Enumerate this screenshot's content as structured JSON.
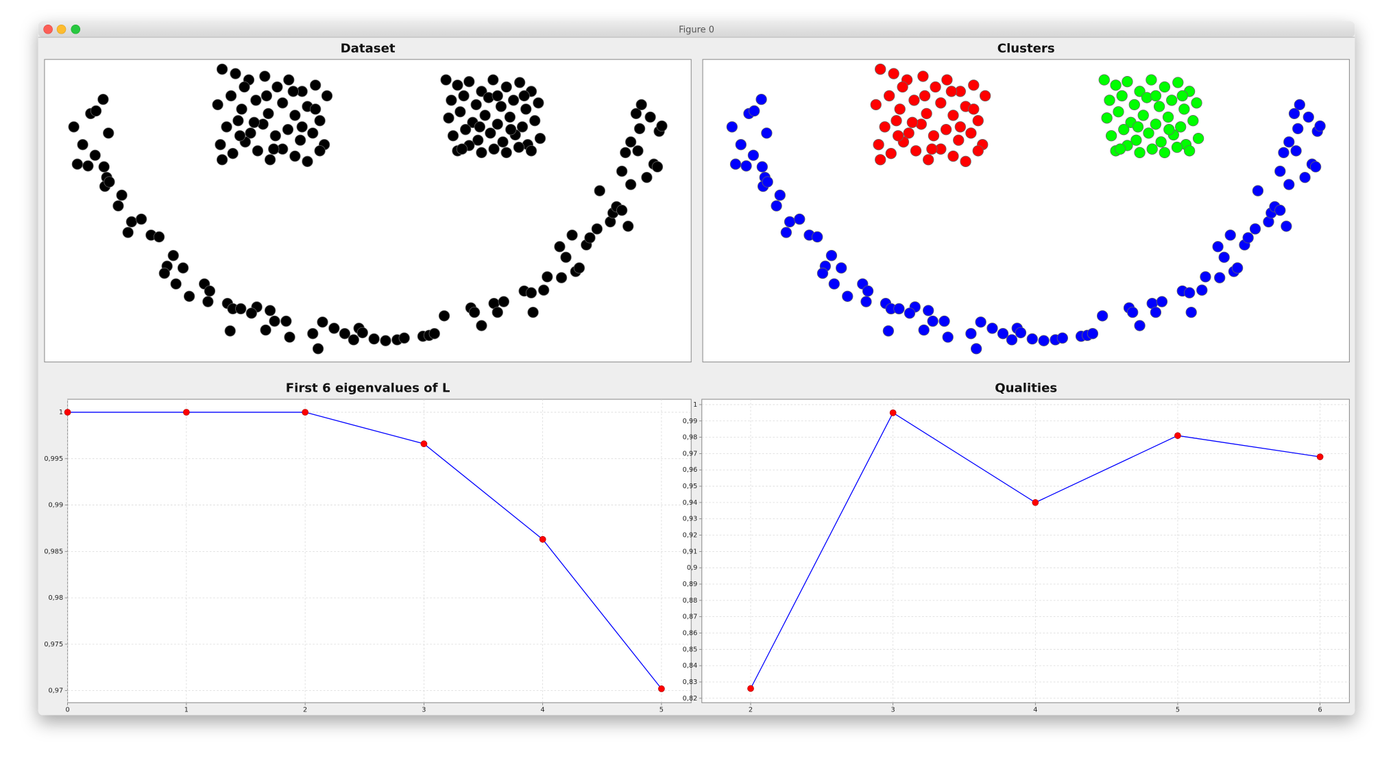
{
  "window_title": "Figure 0",
  "chart_data": [
    {
      "type": "scatter",
      "title": "Dataset",
      "xlim": [
        0,
        728
      ],
      "ylim": [
        0,
        341
      ],
      "series": [
        {
          "color": "#000000",
          "x": [
            33,
            43,
            37,
            49,
            57,
            52,
            58,
            66,
            67,
            72,
            70,
            68,
            73,
            87,
            83,
            98,
            94,
            109,
            120,
            129,
            145,
            138,
            135,
            156,
            148,
            163,
            180,
            186,
            184,
            206,
            212,
            221,
            239,
            233,
            254,
            259,
            272,
            249,
            209,
            276,
            302,
            308,
            313,
            326,
            338,
            348,
            354,
            358,
            371,
            384,
            397,
            405,
            426,
            433,
            439,
            450,
            480,
            484,
            492,
            506,
            510,
            517,
            540,
            548,
            550,
            562,
            566,
            582,
            587,
            598,
            602,
            580,
            594,
            610,
            614,
            622,
            637,
            640,
            644,
            650,
            657,
            625,
            650,
            660,
            654,
            660,
            670,
            666,
            672,
            678,
            686,
            690,
            692,
            695,
            682,
            668
          ],
          "values": [
            265,
            245,
            223,
            221,
            233,
            280,
            283,
            296,
            220,
            258,
            208,
            198,
            203,
            188,
            176,
            158,
            146,
            161,
            143,
            141,
            120,
            108,
            100,
            106,
            88,
            74,
            88,
            80,
            68,
            66,
            60,
            60,
            62,
            55,
            58,
            46,
            46,
            36,
            35,
            28,
            32,
            15,
            45,
            38,
            32,
            25,
            38,
            33,
            26,
            24,
            25,
            27,
            29,
            30,
            32,
            52,
            61,
            56,
            41,
            66,
            56,
            68,
            80,
            78,
            56,
            81,
            96,
            95,
            118,
            102,
            106,
            130,
            143,
            132,
            140,
            150,
            158,
            168,
            175,
            171,
            153,
            193,
            215,
            200,
            236,
            248,
            263,
            280,
            290,
            208,
            223,
            220,
            260,
            266,
            276,
            238
          ]
        },
        {
          "color": "#000000",
          "x": [
            200,
            215,
            230,
            248,
            262,
            275,
            290,
            305,
            318,
            195,
            210,
            222,
            238,
            252,
            268,
            282,
            296,
            310,
            205,
            218,
            232,
            246,
            260,
            274,
            288,
            302,
            315,
            198,
            212,
            226,
            240,
            254,
            268,
            282,
            296,
            310,
            200,
            236,
            250,
            280,
            225,
            290,
            258,
            220,
            305
          ],
          "values": [
            330,
            325,
            318,
            322,
            310,
            318,
            305,
            312,
            300,
            290,
            300,
            285,
            295,
            280,
            292,
            278,
            288,
            272,
            265,
            272,
            258,
            268,
            255,
            262,
            250,
            258,
            245,
            245,
            235,
            248,
            238,
            228,
            240,
            232,
            226,
            238,
            228,
            270,
            300,
            305,
            310,
            265,
            240,
            255,
            285
          ]
        },
        {
          "color": "#000000",
          "x": [
            452,
            465,
            478,
            492,
            505,
            520,
            535,
            548,
            458,
            472,
            486,
            500,
            514,
            528,
            542,
            556,
            455,
            468,
            482,
            496,
            510,
            524,
            538,
            552,
            460,
            474,
            488,
            502,
            516,
            530,
            544,
            558,
            465,
            478,
            492,
            506,
            520,
            534,
            548,
            510,
            490,
            540,
            470,
            525
          ],
          "values": [
            318,
            312,
            316,
            305,
            318,
            310,
            315,
            305,
            295,
            300,
            290,
            298,
            288,
            295,
            285,
            292,
            275,
            282,
            270,
            278,
            268,
            276,
            265,
            272,
            255,
            262,
            250,
            258,
            248,
            256,
            245,
            252,
            238,
            244,
            236,
            240,
            236,
            242,
            238,
            300,
            265,
            300,
            240,
            262
          ]
        }
      ]
    },
    {
      "type": "scatter",
      "title": "Clusters",
      "xlim": [
        0,
        728
      ],
      "ylim": [
        0,
        341
      ],
      "series": [
        {
          "color": "#0000ff",
          "x": [
            33,
            43,
            37,
            49,
            57,
            52,
            58,
            66,
            67,
            72,
            70,
            68,
            73,
            87,
            83,
            98,
            94,
            109,
            120,
            129,
            145,
            138,
            135,
            156,
            148,
            163,
            180,
            186,
            184,
            206,
            212,
            221,
            239,
            233,
            254,
            259,
            272,
            249,
            209,
            276,
            302,
            308,
            313,
            326,
            338,
            348,
            354,
            358,
            371,
            384,
            397,
            405,
            426,
            433,
            439,
            450,
            480,
            484,
            492,
            506,
            510,
            517,
            540,
            548,
            550,
            562,
            566,
            582,
            587,
            598,
            602,
            580,
            594,
            610,
            614,
            622,
            637,
            640,
            644,
            650,
            657,
            625,
            650,
            660,
            654,
            660,
            670,
            666,
            672,
            678,
            686,
            690,
            692,
            695,
            682,
            668
          ],
          "values": [
            265,
            245,
            223,
            221,
            233,
            280,
            283,
            296,
            220,
            258,
            208,
            198,
            203,
            188,
            176,
            158,
            146,
            161,
            143,
            141,
            120,
            108,
            100,
            106,
            88,
            74,
            88,
            80,
            68,
            66,
            60,
            60,
            62,
            55,
            58,
            46,
            46,
            36,
            35,
            28,
            32,
            15,
            45,
            38,
            32,
            25,
            38,
            33,
            26,
            24,
            25,
            27,
            29,
            30,
            32,
            52,
            61,
            56,
            41,
            66,
            56,
            68,
            80,
            78,
            56,
            81,
            96,
            95,
            118,
            102,
            106,
            130,
            143,
            132,
            140,
            150,
            158,
            168,
            175,
            171,
            153,
            193,
            215,
            200,
            236,
            248,
            263,
            280,
            290,
            208,
            223,
            220,
            260,
            266,
            276,
            238
          ]
        },
        {
          "color": "#ff0000",
          "x": [
            200,
            215,
            230,
            248,
            262,
            275,
            290,
            305,
            318,
            195,
            210,
            222,
            238,
            252,
            268,
            282,
            296,
            310,
            205,
            218,
            232,
            246,
            260,
            274,
            288,
            302,
            315,
            198,
            212,
            226,
            240,
            254,
            268,
            282,
            296,
            310,
            200,
            236,
            250,
            280,
            225,
            290,
            258,
            220,
            305
          ],
          "values": [
            330,
            325,
            318,
            322,
            310,
            318,
            305,
            312,
            300,
            290,
            300,
            285,
            295,
            280,
            292,
            278,
            288,
            272,
            265,
            272,
            258,
            268,
            255,
            262,
            250,
            258,
            245,
            245,
            235,
            248,
            238,
            228,
            240,
            232,
            226,
            238,
            228,
            270,
            300,
            305,
            310,
            265,
            240,
            255,
            285
          ]
        },
        {
          "color": "#00ff00",
          "x": [
            452,
            465,
            478,
            492,
            505,
            520,
            535,
            548,
            458,
            472,
            486,
            500,
            514,
            528,
            542,
            556,
            455,
            468,
            482,
            496,
            510,
            524,
            538,
            552,
            460,
            474,
            488,
            502,
            516,
            530,
            544,
            558,
            465,
            478,
            492,
            506,
            520,
            534,
            548,
            510,
            490,
            540,
            470,
            525
          ],
          "values": [
            318,
            312,
            316,
            305,
            318,
            310,
            315,
            305,
            295,
            300,
            290,
            298,
            288,
            295,
            285,
            292,
            275,
            282,
            270,
            278,
            268,
            276,
            265,
            272,
            255,
            262,
            250,
            258,
            248,
            256,
            245,
            252,
            238,
            244,
            236,
            240,
            236,
            242,
            238,
            300,
            265,
            300,
            240,
            262
          ]
        }
      ]
    },
    {
      "type": "line",
      "title": "First 6 eigenvalues of L",
      "grid": true,
      "x": [
        0,
        1,
        2,
        3,
        4,
        5
      ],
      "xlim": [
        0,
        5.25
      ],
      "xticks": [
        0,
        1,
        2,
        3,
        4,
        5
      ],
      "ylim": [
        0.9687,
        1.0014
      ],
      "yticks": [
        {
          "value": 0.97,
          "label": "0,97"
        },
        {
          "value": 0.975,
          "label": "0,975"
        },
        {
          "value": 0.98,
          "label": "0,98"
        },
        {
          "value": 0.985,
          "label": "0,985"
        },
        {
          "value": 0.99,
          "label": "0,99"
        },
        {
          "value": 0.995,
          "label": "0,995"
        },
        1
      ],
      "series": [
        {
          "color": "#0000ff",
          "marker_color": "#ff0000",
          "values": [
            1,
            1,
            1,
            0.9966,
            0.9863,
            0.9702
          ]
        }
      ]
    },
    {
      "type": "line",
      "title": "Qualities",
      "grid": true,
      "x": [
        2,
        3,
        4,
        5,
        6
      ],
      "xlim": [
        1.657,
        6.206
      ],
      "xticks": [
        2,
        3,
        4,
        5,
        6
      ],
      "ylim": [
        0.8173,
        1.0033
      ],
      "yticks": [
        {
          "value": 0.82,
          "label": "0,82"
        },
        {
          "value": 0.83,
          "label": "0,83"
        },
        {
          "value": 0.84,
          "label": "0,84"
        },
        {
          "value": 0.85,
          "label": "0,85"
        },
        {
          "value": 0.86,
          "label": "0,86"
        },
        {
          "value": 0.87,
          "label": "0,87"
        },
        {
          "value": 0.88,
          "label": "0,88"
        },
        {
          "value": 0.89,
          "label": "0,89"
        },
        {
          "value": 0.9,
          "label": "0,9"
        },
        {
          "value": 0.91,
          "label": "0,91"
        },
        {
          "value": 0.92,
          "label": "0,92"
        },
        {
          "value": 0.93,
          "label": "0,93"
        },
        {
          "value": 0.94,
          "label": "0,94"
        },
        {
          "value": 0.95,
          "label": "0,95"
        },
        {
          "value": 0.96,
          "label": "0,96"
        },
        {
          "value": 0.97,
          "label": "0,97"
        },
        {
          "value": 0.98,
          "label": "0,98"
        },
        {
          "value": 0.99,
          "label": "0,99"
        },
        1
      ],
      "series": [
        {
          "color": "#0000ff",
          "marker_color": "#ff0000",
          "values": [
            0.826,
            0.995,
            0.94,
            0.981,
            0.968
          ]
        }
      ]
    }
  ]
}
